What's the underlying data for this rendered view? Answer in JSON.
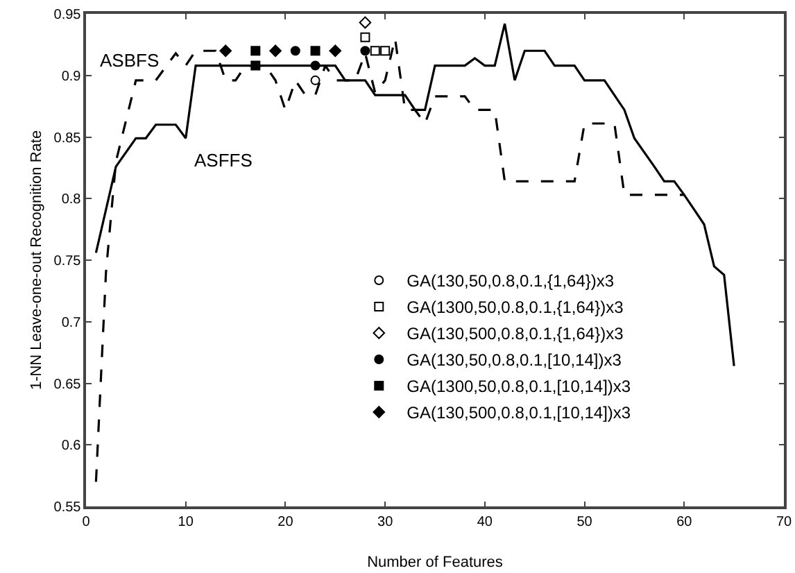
{
  "chart_data": {
    "type": "line",
    "xlabel": "Number of Features",
    "ylabel": "1-NN Leave-one-out Recognition Rate",
    "xlim": [
      0,
      70
    ],
    "ylim": [
      0.55,
      0.95
    ],
    "xticks": [
      0,
      10,
      20,
      30,
      40,
      50,
      60,
      70
    ],
    "yticks": [
      0.55,
      0.6,
      0.65,
      0.7,
      0.75,
      0.8,
      0.85,
      0.9,
      0.95
    ],
    "grid": false,
    "legend": "center",
    "series": [
      {
        "name": "ASFFS",
        "color": "#000000",
        "line_style": "solid",
        "marker": "none",
        "x": [
          1,
          3,
          5,
          6,
          7,
          9,
          10,
          11,
          25,
          26,
          28,
          29,
          32,
          33,
          34,
          35,
          38,
          39,
          40,
          41,
          42,
          43,
          44,
          46,
          47,
          49,
          50,
          52,
          53,
          54,
          55,
          57,
          58,
          59,
          60,
          61,
          62,
          63,
          64,
          65
        ],
        "values": [
          0.756,
          0.826,
          0.849,
          0.849,
          0.86,
          0.86,
          0.849,
          0.908,
          0.908,
          0.896,
          0.896,
          0.884,
          0.884,
          0.872,
          0.872,
          0.908,
          0.908,
          0.914,
          0.908,
          0.908,
          0.942,
          0.896,
          0.92,
          0.92,
          0.908,
          0.908,
          0.896,
          0.896,
          0.884,
          0.872,
          0.849,
          0.826,
          0.814,
          0.814,
          0.803,
          0.791,
          0.779,
          0.745,
          0.738,
          0.664
        ]
      },
      {
        "name": "ASBFS",
        "color": "#000000",
        "line_style": "dashed",
        "marker": "none",
        "x": [
          1,
          2,
          3,
          5,
          7,
          9,
          10,
          11,
          13,
          14,
          15,
          16,
          18,
          19,
          20,
          21,
          22,
          23,
          24,
          25,
          27,
          28,
          29,
          30,
          31,
          32,
          33,
          34,
          35,
          38,
          39,
          41,
          42,
          49,
          50,
          53,
          54,
          60
        ],
        "values": [
          0.57,
          0.74,
          0.83,
          0.896,
          0.896,
          0.918,
          0.908,
          0.92,
          0.92,
          0.896,
          0.896,
          0.908,
          0.908,
          0.896,
          0.872,
          0.896,
          0.884,
          0.884,
          0.908,
          0.896,
          0.896,
          0.918,
          0.886,
          0.896,
          0.93,
          0.872,
          0.872,
          0.861,
          0.883,
          0.883,
          0.872,
          0.872,
          0.814,
          0.814,
          0.861,
          0.861,
          0.803,
          0.803
        ]
      },
      {
        "name": "GA(130,50,0.8,0.1,{1,64})x3",
        "type": "scatter",
        "color": "#ffffff",
        "marker": "circle",
        "x": [
          23
        ],
        "values": [
          0.896
        ]
      },
      {
        "name": "GA(1300,50,0.8,0.1,{1,64})x3",
        "type": "scatter",
        "color": "#ffffff",
        "marker": "square",
        "x": [
          28,
          29,
          30
        ],
        "values": [
          0.931,
          0.92,
          0.92
        ]
      },
      {
        "name": "GA(130,500,0.8,0.1,{1,64})x3",
        "type": "scatter",
        "color": "#ffffff",
        "marker": "diamond",
        "x": [
          28
        ],
        "values": [
          0.943
        ]
      },
      {
        "name": "GA(130,50,0.8,0.1,[10,14])x3",
        "type": "scatter",
        "color": "#000000",
        "marker": "circle",
        "x": [
          21,
          23,
          28
        ],
        "values": [
          0.92,
          0.908,
          0.92
        ]
      },
      {
        "name": "GA(1300,50,0.8,0.1,[10,14])x3",
        "type": "scatter",
        "color": "#000000",
        "marker": "square",
        "x": [
          17,
          23,
          17
        ],
        "values": [
          0.92,
          0.92,
          0.908
        ]
      },
      {
        "name": "GA(130,500,0.8,0.1,[10,14])x3",
        "type": "scatter",
        "color": "#000000",
        "marker": "diamond",
        "x": [
          14,
          19,
          25
        ],
        "values": [
          0.92,
          0.92,
          0.92
        ]
      }
    ]
  }
}
